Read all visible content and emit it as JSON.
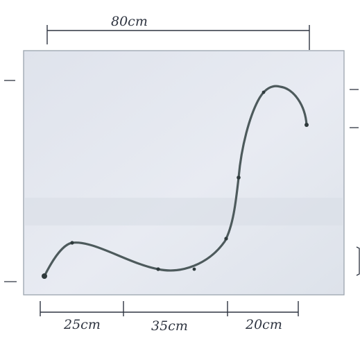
{
  "dimensions": {
    "top": "80cm",
    "bottom": [
      "25cm",
      "35cm",
      "20cm"
    ]
  },
  "colors": {
    "paper": "#ffffff",
    "board": "#e4e8f0",
    "ink": "#2e3440",
    "curve": "#4d5a5c"
  }
}
